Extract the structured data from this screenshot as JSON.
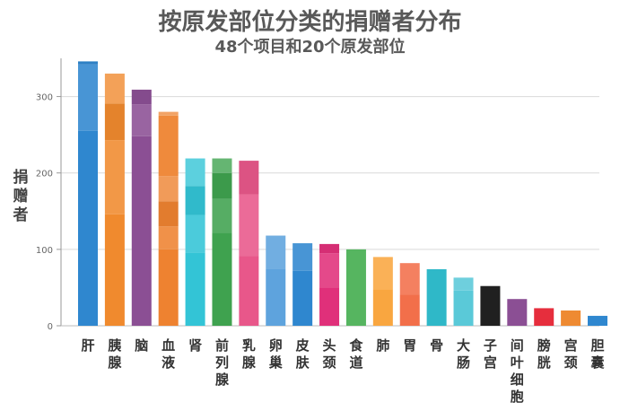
{
  "chart_data": {
    "type": "bar",
    "title": "按原发部位分类的捐赠者分布",
    "subtitle": "48个项目和20个原发部位",
    "xlabel": "",
    "ylabel": "捐赠者",
    "ylim": [
      0,
      350
    ],
    "yticks": [
      0,
      100,
      200,
      300
    ],
    "grid": true,
    "categories": [
      "肝",
      "胰腺",
      "脑",
      "血液",
      "肾",
      "前列腺",
      "乳腺",
      "卵巢",
      "皮肤",
      "头颈",
      "食道",
      "肺",
      "胃",
      "骨",
      "大肠",
      "子宫",
      "间叶细胞",
      "膀胱",
      "宫颈",
      "胆囊"
    ],
    "values": [
      346,
      330,
      309,
      280,
      219,
      219,
      216,
      118,
      108,
      107,
      100,
      90,
      82,
      74,
      63,
      52,
      35,
      23,
      20,
      13
    ],
    "segments": [
      [
        255,
        87,
        4
      ],
      [
        146,
        97,
        48,
        39
      ],
      [
        248,
        42,
        19
      ],
      [
        100,
        30,
        33,
        33,
        79,
        5
      ],
      [
        96,
        49,
        38,
        36
      ],
      [
        122,
        44,
        34,
        19
      ],
      [
        91,
        81,
        44
      ],
      [
        74,
        44
      ],
      [
        72,
        36
      ],
      [
        50,
        45,
        12
      ],
      [
        100
      ],
      [
        48,
        42
      ],
      [
        41,
        41
      ],
      [
        74
      ],
      [
        46,
        17
      ],
      [
        52
      ],
      [
        35
      ],
      [
        23
      ],
      [
        20
      ],
      [
        13
      ]
    ],
    "colors": [
      "#2f87cf",
      "#f08a2e",
      "#8b4f94",
      "#ee8230",
      "#33c4d6",
      "#3fa24f",
      "#e8578a",
      "#5ea3dd",
      "#2f87cf",
      "#e0307a",
      "#56b560",
      "#f9a640",
      "#f26f4a",
      "#2fb8c8",
      "#5ac9d8",
      "#202020",
      "#8b4f94",
      "#e62e3d",
      "#ee8a32",
      "#2f87cf"
    ]
  }
}
